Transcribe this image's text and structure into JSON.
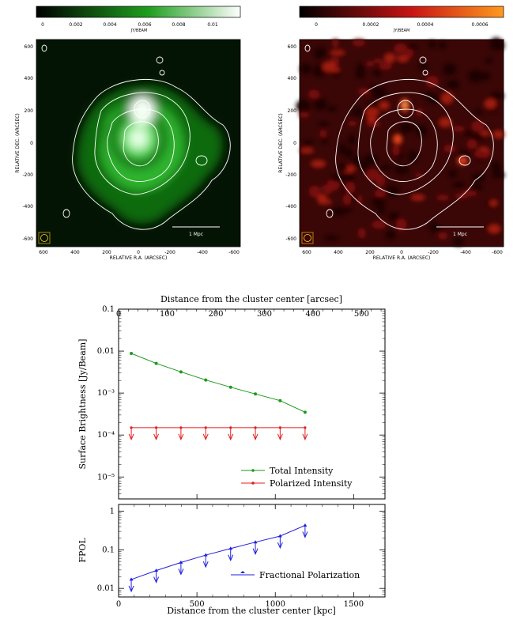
{
  "maps": [
    {
      "id": "total",
      "colorbar": {
        "unit": "JY/BEAM",
        "ticks": [
          "0",
          "0.002",
          "0.004",
          "0.006",
          "0.008",
          "0.01"
        ],
        "colors": [
          "#000000",
          "#1e9e1e",
          "#ffffff"
        ]
      },
      "scale_label": "1 Mpc",
      "xlabel": "RELATIVE R.A. (ARCSEC)",
      "ylabel": "RELATIVE DEC. (ARCSEC)",
      "xticks": [
        "600",
        "400",
        "200",
        "0",
        "-200",
        "-400",
        "-600"
      ],
      "yticks": [
        "600",
        "400",
        "200",
        "0",
        "-200",
        "-400",
        "-600"
      ]
    },
    {
      "id": "polarized",
      "colorbar": {
        "unit": "JY/BEAM",
        "ticks": [
          "0",
          "0.0002",
          "0.0004",
          "0.0006"
        ],
        "colors": [
          "#000000",
          "#c81414",
          "#ff9a1e"
        ]
      },
      "scale_label": "1 Mpc",
      "xlabel": "RELATIVE R.A. (ARCSEC)",
      "ylabel": "RELATIVE DEC. (ARCSEC)",
      "xticks": [
        "600",
        "400",
        "200",
        "0",
        "-200",
        "-400",
        "-600"
      ],
      "yticks": [
        "600",
        "400",
        "200",
        "0",
        "-200",
        "-400",
        "-600"
      ]
    }
  ],
  "chart_data": [
    {
      "type": "line",
      "x_top_label": "Distance from the cluster center [arcsec]",
      "x_top_ticks": [
        "0",
        "100",
        "200",
        "300",
        "400",
        "500"
      ],
      "ylabel": "Surface Brightness [Jy/Beam]",
      "yscale": "log",
      "ylim": [
        3e-06,
        0.1
      ],
      "xlim_kpc": [
        0,
        1700
      ],
      "y_ticks": [
        "0.1",
        "0.01",
        "10⁻³",
        "10⁻⁴",
        "10⁻⁵"
      ],
      "series": [
        {
          "name": "Total Intensity",
          "color": "#1a9a1a",
          "marker": "dot",
          "x": [
            81,
            240,
            398,
            556,
            715,
            873,
            1031,
            1190
          ],
          "values": [
            0.0088,
            0.0051,
            0.0032,
            0.00205,
            0.00138,
            0.00095,
            0.00066,
            0.00035
          ]
        },
        {
          "name": "Polarized Intensity",
          "color": "#e02020",
          "marker": "upper-limit",
          "x": [
            81,
            240,
            398,
            556,
            715,
            873,
            1031,
            1190
          ],
          "values": [
            0.00015,
            0.00015,
            0.00015,
            0.00015,
            0.00015,
            0.00015,
            0.00015,
            0.00015
          ]
        }
      ],
      "legend": "bottom-right"
    },
    {
      "type": "line",
      "xlabel": "Distance from the cluster center [kpc]",
      "x_ticks": [
        "0",
        "500",
        "1000",
        "1500"
      ],
      "ylabel": "FPOL",
      "yscale": "log",
      "ylim": [
        0.006,
        1.5
      ],
      "y_ticks": [
        "1",
        "0.1",
        "0.01"
      ],
      "series": [
        {
          "name": "Fractional Polarization",
          "color": "#2020e0",
          "marker": "upper-limit",
          "x": [
            81,
            240,
            398,
            556,
            715,
            873,
            1031,
            1190
          ],
          "values": [
            0.017,
            0.029,
            0.047,
            0.073,
            0.108,
            0.158,
            0.227,
            0.43
          ]
        }
      ],
      "legend": "bottom-right"
    }
  ]
}
